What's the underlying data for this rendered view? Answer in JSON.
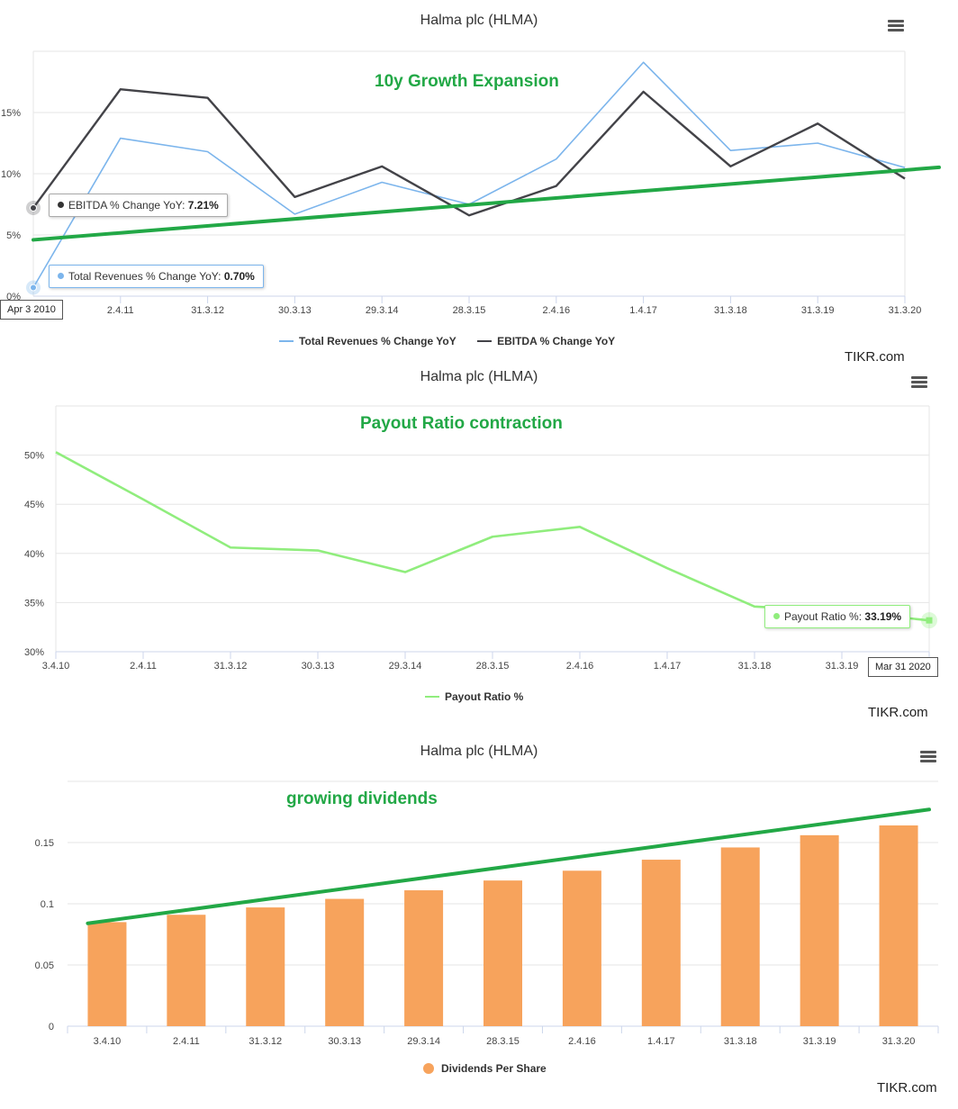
{
  "colors": {
    "revenue": "#7cb5ec",
    "ebitda": "#434348",
    "payout": "#90ed7d",
    "dividend": "#f7a35c",
    "trend": "#22a846",
    "grid": "#e6e6e6",
    "axis": "#ccd6eb"
  },
  "icons": {
    "menu": "hamburger-menu-icon"
  },
  "panel1": {
    "title": "Halma plc (HLMA)",
    "annotation": "10y Growth Expansion",
    "watermark": "TIKR.com",
    "tooltip_ebitda": {
      "label": "EBITDA % Change YoY:",
      "value": "7.21%"
    },
    "tooltip_revenue": {
      "label": "Total Revenues % Change YoY:",
      "value": "0.70%"
    },
    "x_flag": "Apr 3 2010",
    "chart_data": {
      "type": "line",
      "categories": [
        "3.4.10",
        "2.4.11",
        "31.3.12",
        "30.3.13",
        "29.3.14",
        "28.3.15",
        "2.4.16",
        "1.4.17",
        "31.3.18",
        "31.3.19",
        "31.3.20"
      ],
      "xtick_labels": [
        "2.4.11",
        "31.3.12",
        "30.3.13",
        "29.3.14",
        "28.3.15",
        "2.4.16",
        "1.4.17",
        "31.3.18",
        "31.3.19",
        "31.3.20"
      ],
      "series": [
        {
          "name": "Total Revenues % Change YoY",
          "values": [
            0.7,
            12.9,
            11.8,
            6.7,
            9.3,
            7.5,
            11.2,
            19.1,
            11.9,
            12.5,
            10.5
          ]
        },
        {
          "name": "EBITDA % Change YoY",
          "values": [
            7.21,
            16.9,
            16.2,
            8.1,
            10.6,
            6.6,
            9.0,
            16.7,
            10.6,
            14.1,
            9.6
          ]
        }
      ],
      "trendline": {
        "start": 4.6,
        "end": 10.3
      },
      "yticks": [
        0,
        5,
        10,
        15
      ],
      "ytick_labels": [
        "0%",
        "5%",
        "10%",
        "15%"
      ],
      "ylim": [
        0,
        20
      ],
      "grid": true,
      "legend": "bottom-center"
    }
  },
  "panel2": {
    "title": "Halma plc (HLMA)",
    "annotation": "Payout Ratio contraction",
    "watermark": "TIKR.com",
    "tooltip_payout": {
      "label": "Payout Ratio %:",
      "value": "33.19%"
    },
    "x_flag": "Mar 31 2020",
    "chart_data": {
      "type": "line",
      "categories": [
        "3.4.10",
        "2.4.11",
        "31.3.12",
        "30.3.13",
        "29.3.14",
        "28.3.15",
        "2.4.16",
        "1.4.17",
        "31.3.18",
        "31.3.19",
        "31.3.20"
      ],
      "xtick_labels": [
        "3.4.10",
        "2.4.11",
        "31.3.12",
        "30.3.13",
        "29.3.14",
        "28.3.15",
        "2.4.16",
        "1.4.17",
        "31.3.18",
        "31.3.19"
      ],
      "series": [
        {
          "name": "Payout Ratio %",
          "values": [
            50.3,
            45.5,
            40.6,
            40.3,
            38.1,
            41.7,
            42.7,
            38.5,
            34.6,
            34.1,
            33.19
          ]
        }
      ],
      "yticks": [
        30,
        35,
        40,
        45,
        50
      ],
      "ytick_labels": [
        "30%",
        "35%",
        "40%",
        "45%",
        "50%"
      ],
      "ylim": [
        30,
        55
      ],
      "grid": true,
      "legend": "bottom-center"
    }
  },
  "panel3": {
    "title": "Halma plc (HLMA)",
    "annotation": "growing dividends",
    "watermark": "TIKR.com",
    "chart_data": {
      "type": "bar",
      "categories": [
        "3.4.10",
        "2.4.11",
        "31.3.12",
        "30.3.13",
        "29.3.14",
        "28.3.15",
        "2.4.16",
        "1.4.17",
        "31.3.18",
        "31.3.19",
        "31.3.20"
      ],
      "series": [
        {
          "name": "Dividends Per Share",
          "values": [
            0.085,
            0.091,
            0.097,
            0.104,
            0.111,
            0.119,
            0.127,
            0.136,
            0.146,
            0.156,
            0.164
          ]
        }
      ],
      "trendline": {
        "start": 0.084,
        "end": 0.177
      },
      "yticks": [
        0,
        0.05,
        0.1,
        0.15
      ],
      "ytick_labels": [
        "0",
        "0.05",
        "0.1",
        "0.15"
      ],
      "ylim": [
        0,
        0.2
      ],
      "grid": true,
      "legend": "bottom-center"
    }
  }
}
